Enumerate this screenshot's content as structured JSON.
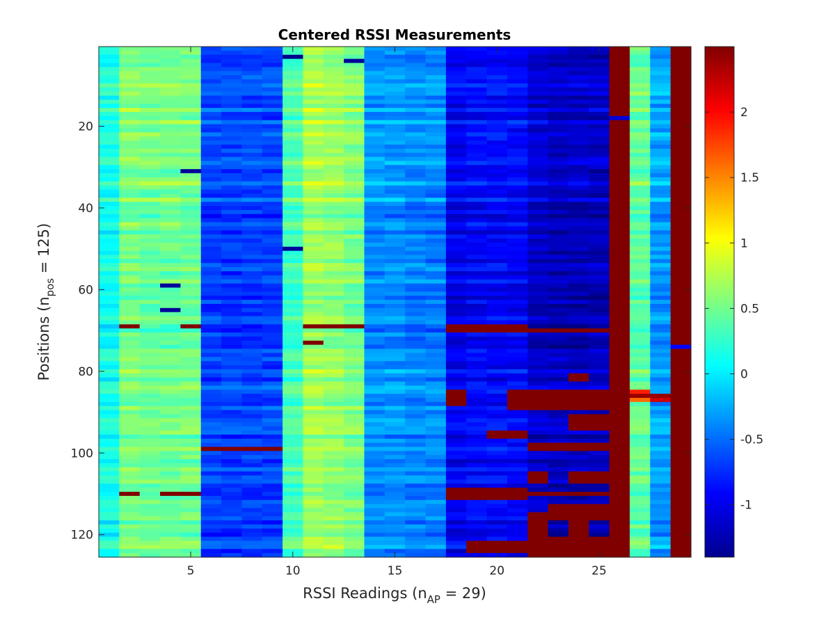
{
  "chart_data": {
    "type": "heatmap",
    "title": "Centered RSSI Measurements",
    "xlabel": {
      "main": "RSSI Readings (n",
      "sub": "AP",
      "tail": " = 29)"
    },
    "ylabel": {
      "main": "Positions (n",
      "sub": "pos",
      "tail": " = 125)"
    },
    "n_cols": 29,
    "n_rows": 125,
    "xlim": [
      0.5,
      29.5
    ],
    "ylim": [
      0.5,
      125.5
    ],
    "x_ticks": [
      "5",
      "10",
      "15",
      "20",
      "25"
    ],
    "x_tick_values": [
      5,
      10,
      15,
      20,
      25
    ],
    "y_ticks": [
      "20",
      "40",
      "60",
      "80",
      "100",
      "120"
    ],
    "y_tick_values": [
      20,
      40,
      60,
      80,
      100,
      120
    ],
    "colormap": "jet",
    "clim": [
      -1.4,
      2.5
    ],
    "colorbar_ticks": [
      "-1",
      "-0.5",
      "0",
      "0.5",
      "1",
      "1.5",
      "2"
    ],
    "colorbar_tick_values": [
      -1,
      -0.5,
      0,
      0.5,
      1,
      1.5,
      2
    ],
    "column_base_values": [
      0.15,
      0.55,
      0.5,
      0.5,
      0.5,
      -0.65,
      -0.65,
      -0.65,
      -0.65,
      0.35,
      0.7,
      0.65,
      0.55,
      -0.35,
      -0.35,
      -0.4,
      -0.4,
      -0.95,
      -0.9,
      -0.9,
      -0.9,
      -1.1,
      -1.15,
      -1.15,
      -1.15,
      2.5,
      0.45,
      -0.3,
      2.5
    ],
    "row_shift_segments": [
      {
        "rows": [
          1,
          40
        ],
        "shift": 0.05
      },
      {
        "rows": [
          41,
          75
        ],
        "shift": -0.05
      },
      {
        "rows": [
          76,
          125
        ],
        "shift": 0.0
      }
    ],
    "outlier_cells": [
      {
        "row": 18,
        "col": 26,
        "value": -1.05
      },
      {
        "row": 69,
        "col": 2,
        "value": 2.5
      },
      {
        "row": 69,
        "col": 5,
        "value": 2.5
      },
      {
        "row": 110,
        "col": 2,
        "value": 2.5
      },
      {
        "row": 110,
        "col": 4,
        "value": 2.5
      },
      {
        "row": 110,
        "col": 5,
        "value": 2.5
      },
      {
        "row": 99,
        "col": 6,
        "value": 2.5
      },
      {
        "row": 99,
        "col": 7,
        "value": 2.5
      },
      {
        "row": 99,
        "col": 8,
        "value": 2.5
      },
      {
        "row": 99,
        "col": 9,
        "value": 2.5
      },
      {
        "row": 69,
        "col": 11,
        "value": 2.5
      },
      {
        "row": 69,
        "col": 12,
        "value": 2.5
      },
      {
        "row": 69,
        "col": 13,
        "value": 2.5
      },
      {
        "row": 31,
        "col": 5,
        "value": -1.3
      },
      {
        "row": 59,
        "col": 4,
        "value": -1.3
      },
      {
        "row": 65,
        "col": 4,
        "value": -1.3
      },
      {
        "row": 3,
        "col": 10,
        "value": -1.35
      },
      {
        "row": 4,
        "col": 13,
        "value": -1.3
      },
      {
        "row": 50,
        "col": 10,
        "value": -1.3
      },
      {
        "row": 73,
        "col": 11,
        "value": 2.5
      },
      {
        "row": 74,
        "col": 29,
        "value": -0.9
      },
      {
        "row": 85,
        "col": 27,
        "value": 1.9
      },
      {
        "row": 86,
        "col": 27,
        "value": 2.4
      },
      {
        "row": 87,
        "col": 27,
        "value": 1.6
      },
      {
        "row": 86,
        "col": 28,
        "value": 2.4
      },
      {
        "row": 87,
        "col": 28,
        "value": 2.2
      }
    ],
    "hot_blocks": [
      {
        "rows": [
          69,
          70
        ],
        "cols": [
          18,
          21
        ],
        "value": 2.5
      },
      {
        "rows": [
          70,
          70
        ],
        "cols": [
          22,
          25
        ],
        "value": 2.5
      },
      {
        "rows": [
          85,
          88
        ],
        "cols": [
          18,
          18
        ],
        "value": 2.5
      },
      {
        "rows": [
          85,
          89
        ],
        "cols": [
          21,
          25
        ],
        "value": 2.5
      },
      {
        "rows": [
          91,
          94
        ],
        "cols": [
          24,
          25
        ],
        "value": 2.5
      },
      {
        "rows": [
          95,
          96
        ],
        "cols": [
          20,
          21
        ],
        "value": 2.5
      },
      {
        "rows": [
          98,
          99
        ],
        "cols": [
          22,
          25
        ],
        "value": 2.5
      },
      {
        "rows": [
          105,
          107
        ],
        "cols": [
          22,
          22
        ],
        "value": 2.5
      },
      {
        "rows": [
          105,
          107
        ],
        "cols": [
          24,
          25
        ],
        "value": 2.5
      },
      {
        "rows": [
          109,
          111
        ],
        "cols": [
          18,
          21
        ],
        "value": 2.5
      },
      {
        "rows": [
          110,
          110
        ],
        "cols": [
          22,
          25
        ],
        "value": 2.5
      },
      {
        "rows": [
          115,
          125
        ],
        "cols": [
          22,
          22
        ],
        "value": 2.5
      },
      {
        "rows": [
          113,
          116
        ],
        "cols": [
          23,
          25
        ],
        "value": 2.5
      },
      {
        "rows": [
          117,
          125
        ],
        "cols": [
          24,
          24
        ],
        "value": 2.5
      },
      {
        "rows": [
          121,
          125
        ],
        "cols": [
          22,
          25
        ],
        "value": 2.5
      },
      {
        "rows": [
          122,
          124
        ],
        "cols": [
          19,
          21
        ],
        "value": 2.5
      },
      {
        "rows": [
          81,
          82
        ],
        "cols": [
          24,
          24
        ],
        "value": 2.5
      }
    ]
  }
}
